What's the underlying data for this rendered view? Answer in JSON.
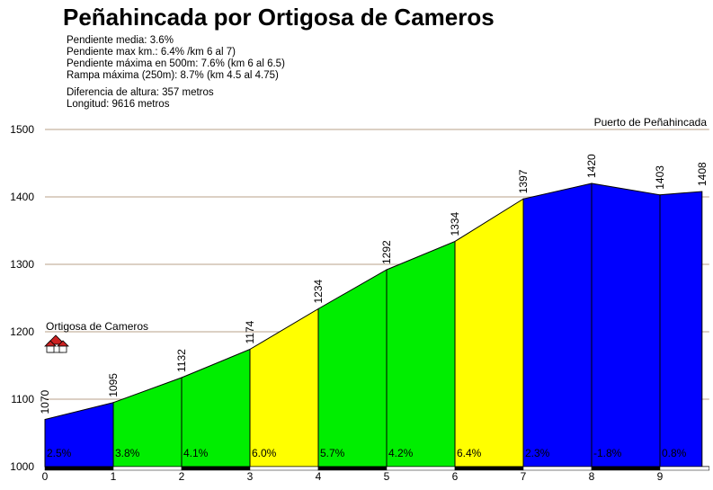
{
  "title": "Peñahincada por Ortigosa de Cameros",
  "stats": {
    "pendiente_media": "Pendiente media: 3.6%",
    "pendiente_max_km": "Pendiente max km.: 6.4% /km 6 al 7)",
    "pendiente_max_500": "Pendiente máxima en 500m: 7.6% (km 6 al 6.5)",
    "rampa_maxima": "Rampa máxima (250m): 8.7% (km 4.5 al 4.75)",
    "diferencia": "Diferencia de altura: 357 metros",
    "longitud": "Longitud: 9616 metros"
  },
  "chart_data": {
    "type": "area",
    "title": "Peñahincada por Ortigosa de Cameros",
    "xlabel": "",
    "ylabel": "",
    "ylim": [
      1000,
      1500
    ],
    "xlim": [
      0,
      9.616
    ],
    "x_ticks": [
      "0",
      "1",
      "2",
      "3",
      "4",
      "5",
      "6",
      "7",
      "8",
      "9"
    ],
    "y_ticks": [
      "1000",
      "1100",
      "1200",
      "1300",
      "1400",
      "1500"
    ],
    "points": [
      {
        "x": 0,
        "y": 1070
      },
      {
        "x": 1,
        "y": 1095
      },
      {
        "x": 2,
        "y": 1132
      },
      {
        "x": 3,
        "y": 1174
      },
      {
        "x": 4,
        "y": 1234
      },
      {
        "x": 5,
        "y": 1292
      },
      {
        "x": 6,
        "y": 1334
      },
      {
        "x": 7,
        "y": 1397
      },
      {
        "x": 8,
        "y": 1420
      },
      {
        "x": 9,
        "y": 1403
      },
      {
        "x": 9.616,
        "y": 1408
      }
    ],
    "elevation_labels": [
      "1070",
      "1095",
      "1132",
      "1174",
      "1234",
      "1292",
      "1334",
      "1397",
      "1420",
      "1403",
      "1408"
    ],
    "segment_gradients": [
      "2.5%",
      "3.8%",
      "4.1%",
      "6.0%",
      "5.7%",
      "4.2%",
      "6.4%",
      "2.3%",
      "-1.8%",
      "0.8%"
    ],
    "segment_colors": [
      "#0000ff",
      "#00ee00",
      "#00ee00",
      "#ffff00",
      "#00ee00",
      "#00ee00",
      "#ffff00",
      "#0000ff",
      "#0000ff",
      "#0000ff"
    ],
    "start_label": "Ortigosa de Cameros",
    "start_icon": "village-icon",
    "end_label": "Puerto de Peñahincada",
    "grid": true,
    "gridline_color": "#c8b4a0"
  }
}
